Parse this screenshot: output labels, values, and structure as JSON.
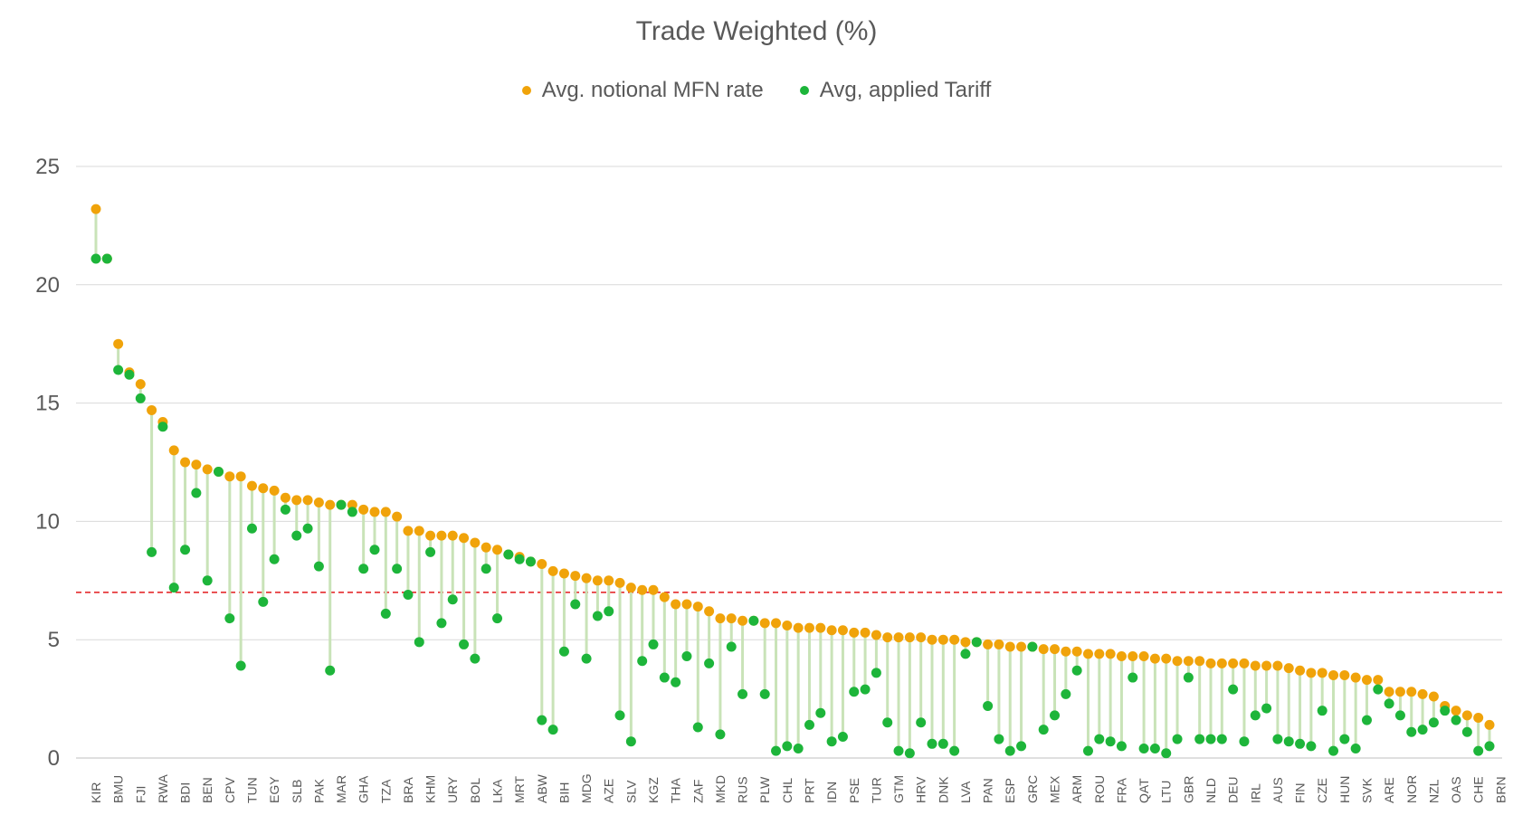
{
  "chart_data": {
    "type": "scatter",
    "title": "Trade Weighted (%)",
    "xlabel": "",
    "ylabel": "",
    "ylim": [
      0,
      25
    ],
    "yticks": [
      0,
      5,
      10,
      15,
      20,
      25
    ],
    "grid": true,
    "legend_position": "top-center",
    "reference_line": {
      "value": 7,
      "color": "#e31a1c",
      "style": "dashed"
    },
    "x_tick_labels": [
      "KIR",
      "BMU",
      "FJI",
      "RWA",
      "BDI",
      "BEN",
      "CPV",
      "TUN",
      "EGY",
      "SLB",
      "PAK",
      "MAR",
      "GHA",
      "TZA",
      "BRA",
      "KHM",
      "URY",
      "BOL",
      "LKA",
      "MRT",
      "ABW",
      "BIH",
      "MDG",
      "AZE",
      "SLV",
      "KGZ",
      "THA",
      "ZAF",
      "MKD",
      "RUS",
      "PLW",
      "CHL",
      "PRT",
      "IDN",
      "PSE",
      "TUR",
      "GTM",
      "HRV",
      "DNK",
      "LVA",
      "PAN",
      "ESP",
      "GRC",
      "MEX",
      "ARM",
      "ROU",
      "FRA",
      "QAT",
      "LTU",
      "GBR",
      "NLD",
      "DEU",
      "IRL",
      "AUS",
      "FIN",
      "CZE",
      "HUN",
      "SVK",
      "ARE",
      "NOR",
      "NZL",
      "OAS",
      "CHE",
      "BRN"
    ],
    "series": [
      {
        "name": "Avg. notional MFN rate",
        "color": "#f0a30a",
        "values": [
          23.2,
          21.1,
          17.5,
          16.3,
          15.8,
          14.7,
          14.2,
          13.0,
          12.5,
          12.4,
          12.2,
          12.1,
          11.9,
          11.9,
          11.5,
          11.4,
          11.3,
          11.0,
          10.9,
          10.9,
          10.8,
          10.7,
          10.7,
          10.7,
          10.5,
          10.4,
          10.4,
          10.2,
          9.6,
          9.6,
          9.4,
          9.4,
          9.4,
          9.3,
          9.1,
          8.9,
          8.8,
          8.6,
          8.5,
          8.3,
          8.2,
          7.9,
          7.8,
          7.7,
          7.6,
          7.5,
          7.5,
          7.4,
          7.2,
          7.1,
          7.1,
          6.8,
          6.5,
          6.5,
          6.4,
          6.2,
          5.9,
          5.9,
          5.8,
          5.8,
          5.7,
          5.7,
          5.6,
          5.5,
          5.5,
          5.5,
          5.4,
          5.4,
          5.3,
          5.3,
          5.2,
          5.1,
          5.1,
          5.1,
          5.1,
          5.0,
          5.0,
          5.0,
          4.9,
          4.9,
          4.8,
          4.8,
          4.7,
          4.7,
          4.7,
          4.6,
          4.6,
          4.5,
          4.5,
          4.4,
          4.4,
          4.4,
          4.3,
          4.3,
          4.3,
          4.2,
          4.2,
          4.1,
          4.1,
          4.1,
          4.0,
          4.0,
          4.0,
          4.0,
          3.9,
          3.9,
          3.9,
          3.8,
          3.7,
          3.6,
          3.6,
          3.5,
          3.5,
          3.4,
          3.3,
          3.3,
          2.8,
          2.8,
          2.8,
          2.7,
          2.6,
          2.2,
          2.0,
          1.8,
          1.7,
          1.4
        ]
      },
      {
        "name": "Avg, applied Tariff",
        "color": "#1db53a",
        "values": [
          21.1,
          21.1,
          16.4,
          16.2,
          15.2,
          8.7,
          14.0,
          7.2,
          8.8,
          11.2,
          7.5,
          12.1,
          5.9,
          3.9,
          9.7,
          6.6,
          8.4,
          10.5,
          9.4,
          9.7,
          8.1,
          3.7,
          10.7,
          10.4,
          8.0,
          8.8,
          6.1,
          8.0,
          6.9,
          4.9,
          8.7,
          5.7,
          6.7,
          4.8,
          4.2,
          8.0,
          5.9,
          8.6,
          8.4,
          8.3,
          1.6,
          1.2,
          4.5,
          6.5,
          4.2,
          6.0,
          6.2,
          1.8,
          0.7,
          4.1,
          4.8,
          3.4,
          3.2,
          4.3,
          1.3,
          4.0,
          1.0,
          4.7,
          2.7,
          5.8,
          2.7,
          0.3,
          0.5,
          0.4,
          1.4,
          1.9,
          0.7,
          0.9,
          2.8,
          2.9,
          3.6,
          1.5,
          0.3,
          0.2,
          1.5,
          0.6,
          0.6,
          0.3,
          4.4,
          4.9,
          2.2,
          0.8,
          0.3,
          0.5,
          4.7,
          1.2,
          1.8,
          2.7,
          3.7,
          0.3,
          0.8,
          0.7,
          0.5,
          3.4,
          0.4,
          0.4,
          0.2,
          0.8,
          3.4,
          0.8,
          0.8,
          0.8,
          2.9,
          0.7,
          1.8,
          2.1,
          0.8,
          0.7,
          0.6,
          0.5,
          2.0,
          0.3,
          0.8,
          0.4,
          1.6,
          2.9,
          2.3,
          1.8,
          1.1,
          1.2,
          1.5,
          2.0,
          1.6,
          1.1,
          0.3,
          0.5
        ]
      }
    ]
  }
}
